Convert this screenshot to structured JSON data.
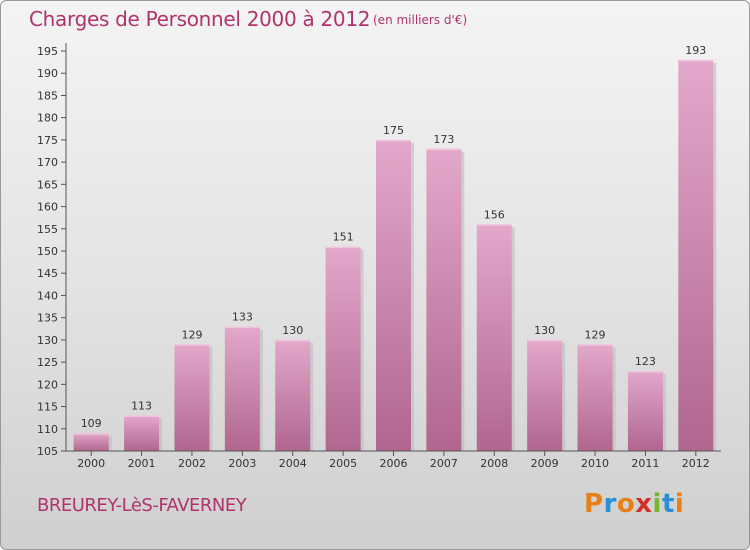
{
  "title": "Charges de Personnel 2000 à 2012",
  "subtitle": "(en milliers d'€)",
  "commune": "BREUREY-LèS-FAVERNEY",
  "logo": {
    "text": "Proxiti",
    "letters": [
      {
        "ch": "P",
        "color": "#e8801a"
      },
      {
        "ch": "r",
        "color": "#2a8fd6"
      },
      {
        "ch": "o",
        "color": "#e8801a"
      },
      {
        "ch": "x",
        "color": "#d0302a"
      },
      {
        "ch": "i",
        "color": "#7ab52e"
      },
      {
        "ch": "t",
        "color": "#2a8fd6"
      },
      {
        "ch": "i",
        "color": "#e8801a"
      }
    ]
  },
  "colors": {
    "bar_top": "#e3a8cb",
    "bar_bottom": "#b0668f",
    "accent": "#b0336e"
  },
  "chart_data": {
    "type": "bar",
    "categories": [
      "2000",
      "2001",
      "2002",
      "2003",
      "2004",
      "2005",
      "2006",
      "2007",
      "2008",
      "2009",
      "2010",
      "2011",
      "2012"
    ],
    "values": [
      109,
      113,
      129,
      133,
      130,
      151,
      175,
      173,
      156,
      130,
      129,
      123,
      193
    ],
    "ylim": [
      105,
      195
    ],
    "yticks": [
      105,
      110,
      115,
      120,
      125,
      130,
      135,
      140,
      145,
      150,
      155,
      160,
      165,
      170,
      175,
      180,
      185,
      190,
      195
    ],
    "grid": false,
    "data_labels": true
  }
}
